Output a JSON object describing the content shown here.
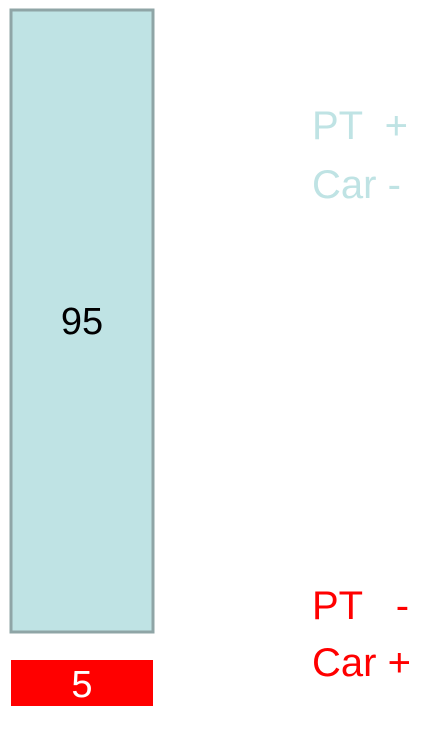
{
  "chart_data": {
    "type": "bar",
    "stacked": true,
    "categories": [
      ""
    ],
    "series": [
      {
        "name": "PT + Car -",
        "values": [
          95
        ],
        "color": "#bfe3e4"
      },
      {
        "name": "PT - Car +",
        "values": [
          5
        ],
        "color": "#ff0000"
      }
    ],
    "data_labels": [
      "95",
      "5"
    ],
    "ylim": [
      0,
      100
    ],
    "grid": false,
    "legend_placement": "right"
  },
  "legend": {
    "top": {
      "line1": "PT  +",
      "line2": "Car -",
      "color": "#bfe3e4"
    },
    "bottom": {
      "line1": "PT   -",
      "line2": "Car +",
      "color": "#ff0000"
    }
  },
  "colors": {
    "bar_top_border": "#8fa5a6",
    "label_text": "#000000",
    "label_text_on_red": "#ffffff"
  }
}
